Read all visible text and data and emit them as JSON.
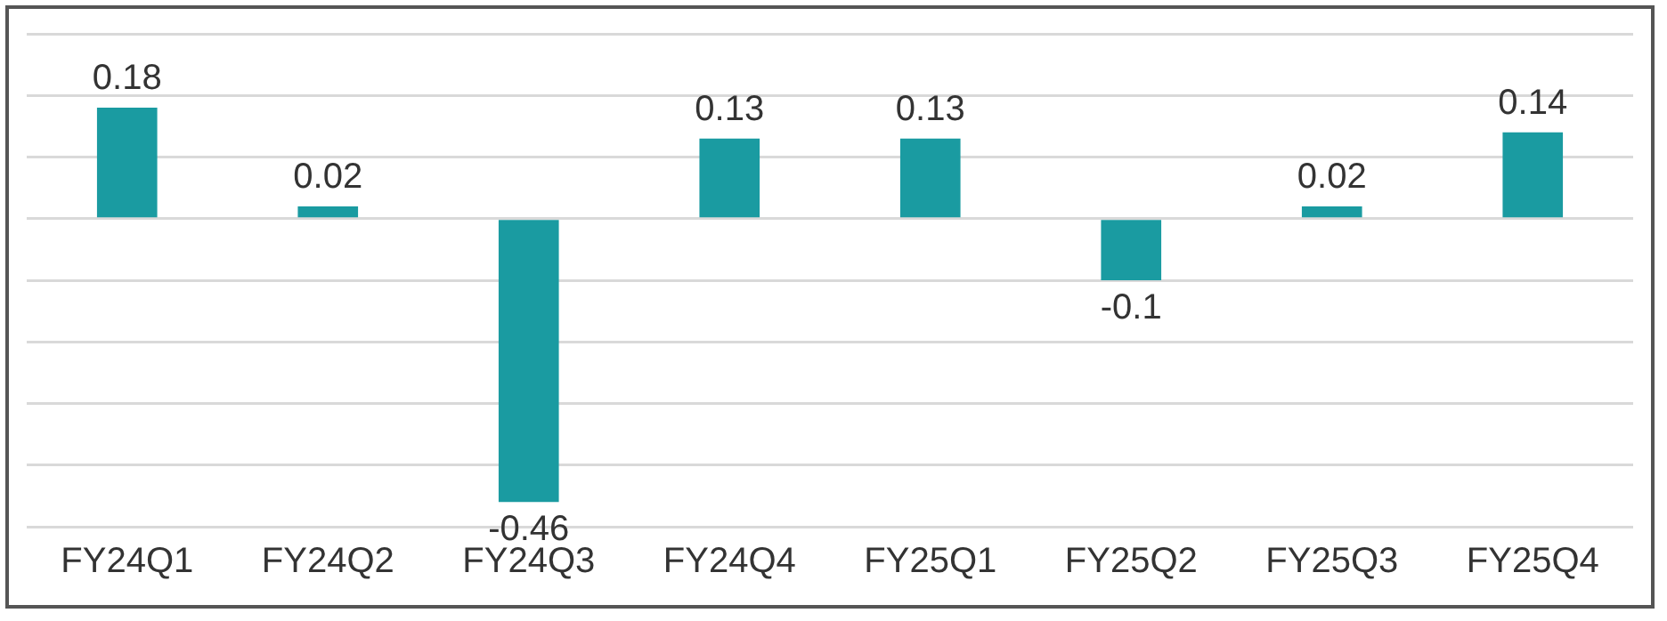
{
  "chart_data": {
    "type": "bar",
    "categories": [
      "FY24Q1",
      "FY24Q2",
      "FY24Q3",
      "FY24Q4",
      "FY25Q1",
      "FY25Q2",
      "FY25Q3",
      "FY25Q4"
    ],
    "values": [
      0.18,
      0.02,
      -0.46,
      0.13,
      0.13,
      -0.1,
      0.02,
      0.14
    ],
    "color": "#1a9ba1",
    "ylim": [
      -0.5,
      0.3
    ],
    "yticks": [
      {
        "value": -0.5,
        "label": null
      },
      {
        "value": -0.4,
        "label": null
      },
      {
        "value": -0.3,
        "label": null
      },
      {
        "value": -0.2,
        "label": null
      },
      {
        "value": -0.1,
        "label": null
      },
      {
        "value": 0,
        "label": null
      },
      {
        "value": 0.1,
        "label": null
      },
      {
        "value": 0.2,
        "label": null
      },
      {
        "value": 0.3,
        "label": null
      }
    ],
    "grid": "y",
    "tick_labels": "x",
    "data_labels": true,
    "legend": false
  }
}
